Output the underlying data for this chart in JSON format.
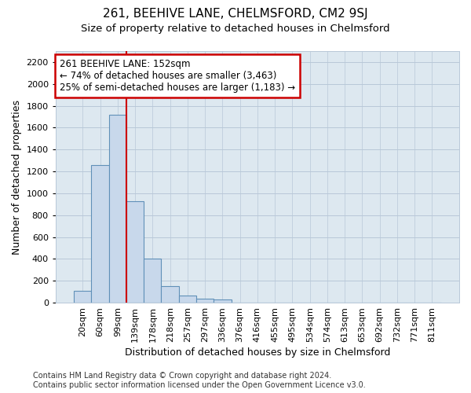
{
  "title": "261, BEEHIVE LANE, CHELMSFORD, CM2 9SJ",
  "subtitle": "Size of property relative to detached houses in Chelmsford",
  "xlabel": "Distribution of detached houses by size in Chelmsford",
  "ylabel": "Number of detached properties",
  "footer_line1": "Contains HM Land Registry data © Crown copyright and database right 2024.",
  "footer_line2": "Contains public sector information licensed under the Open Government Licence v3.0.",
  "bin_labels": [
    "20sqm",
    "60sqm",
    "99sqm",
    "139sqm",
    "178sqm",
    "218sqm",
    "257sqm",
    "297sqm",
    "336sqm",
    "376sqm",
    "416sqm",
    "455sqm",
    "495sqm",
    "534sqm",
    "574sqm",
    "613sqm",
    "653sqm",
    "692sqm",
    "732sqm",
    "771sqm",
    "811sqm"
  ],
  "bar_values": [
    108,
    1260,
    1720,
    930,
    405,
    150,
    65,
    38,
    28,
    0,
    0,
    0,
    0,
    0,
    0,
    0,
    0,
    0,
    0,
    0,
    0
  ],
  "bar_color": "#c8d8eb",
  "bar_edge_color": "#6090b8",
  "ylim": [
    0,
    2300
  ],
  "yticks": [
    0,
    200,
    400,
    600,
    800,
    1000,
    1200,
    1400,
    1600,
    1800,
    2000,
    2200
  ],
  "vline_color": "#cc0000",
  "annotation_text_line1": "261 BEEHIVE LANE: 152sqm",
  "annotation_text_line2": "← 74% of detached houses are smaller (3,463)",
  "annotation_text_line3": "25% of semi-detached houses are larger (1,183) →",
  "annotation_box_color": "white",
  "annotation_box_edge_color": "#cc0000",
  "background_color": "white",
  "plot_background": "#dde8f0",
  "grid_color": "#b8c8d8",
  "title_fontsize": 11,
  "subtitle_fontsize": 9.5,
  "axis_label_fontsize": 9,
  "tick_fontsize": 8,
  "footer_fontsize": 7
}
